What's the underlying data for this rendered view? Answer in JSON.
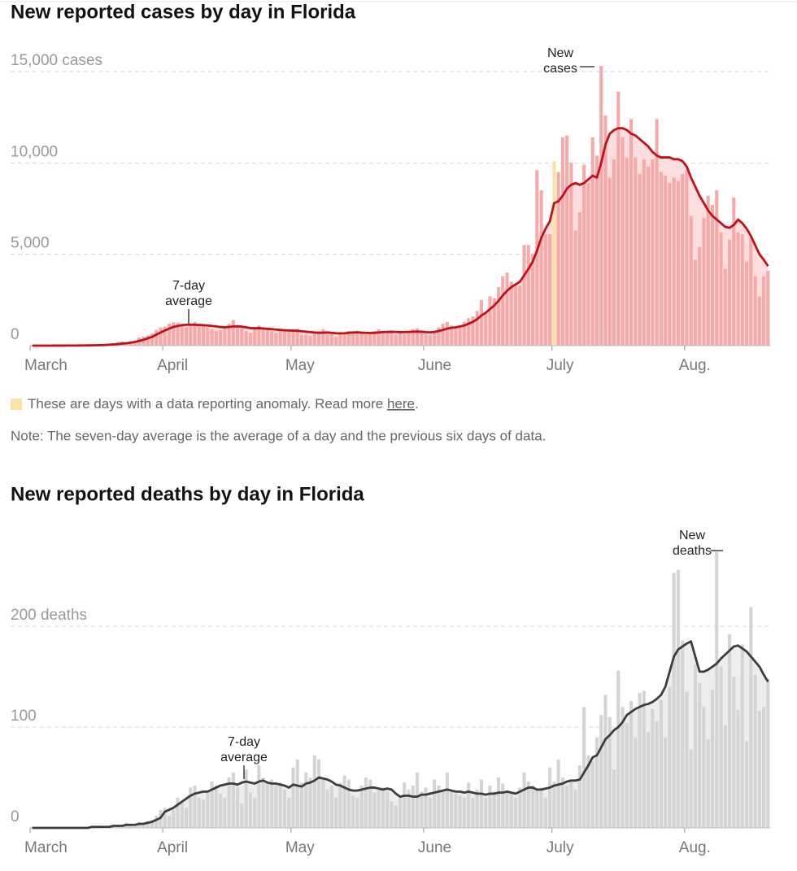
{
  "chart_data": [
    {
      "type": "bar",
      "title": "New reported cases by day in Florida",
      "categories": [
        "March",
        null,
        null,
        null,
        null,
        null,
        null,
        null,
        null,
        null,
        null,
        null,
        null,
        null,
        null,
        null,
        null,
        null,
        null,
        null,
        null,
        null,
        null,
        null,
        null,
        null,
        null,
        null,
        null,
        null,
        null,
        "April",
        null,
        null,
        null,
        null,
        null,
        null,
        null,
        null,
        null,
        null,
        null,
        null,
        null,
        null,
        null,
        null,
        null,
        null,
        null,
        null,
        null,
        null,
        null,
        null,
        null,
        null,
        null,
        null,
        null,
        "May",
        null,
        null,
        null,
        null,
        null,
        null,
        null,
        null,
        null,
        null,
        null,
        null,
        null,
        null,
        null,
        null,
        null,
        null,
        null,
        null,
        null,
        null,
        null,
        null,
        null,
        null,
        null,
        null,
        null,
        null,
        "June",
        null,
        null,
        null,
        null,
        null,
        null,
        null,
        null,
        null,
        null,
        null,
        null,
        null,
        null,
        null,
        null,
        null,
        null,
        null,
        null,
        null,
        null,
        null,
        null,
        null,
        null,
        null,
        null,
        null,
        "July",
        null,
        null,
        null,
        null,
        null,
        null,
        null,
        null,
        null,
        null,
        null,
        null,
        null,
        null,
        null,
        null,
        null,
        null,
        null,
        null,
        null,
        null,
        null,
        null,
        null,
        null,
        null,
        null,
        null,
        null,
        "Aug.",
        null,
        null,
        null,
        null,
        null,
        null,
        null,
        null,
        null,
        null,
        null,
        null,
        null,
        null,
        null,
        null,
        null,
        null,
        null
      ],
      "series": [
        {
          "type": "bar",
          "color": "#f5a9a9",
          "area_color": "#fcdede",
          "values": [
            0,
            1,
            0,
            1,
            3,
            5,
            4,
            2,
            7,
            3,
            12,
            13,
            21,
            30,
            27,
            40,
            56,
            70,
            121,
            140,
            193,
            220,
            152,
            243,
            265,
            445,
            505,
            566,
            657,
            860,
            1000,
            1040,
            1200,
            1280,
            1260,
            1200,
            1000,
            1150,
            1300,
            1100,
            1100,
            1000,
            900,
            800,
            850,
            1000,
            1200,
            1400,
            1050,
            1000,
            800,
            700,
            1000,
            1100,
            1000,
            900,
            800,
            700,
            800,
            900,
            850,
            800,
            900,
            600,
            600,
            550,
            700,
            800,
            900,
            600,
            700,
            500,
            600,
            700,
            800,
            750,
            800,
            700,
            600,
            650,
            800,
            900,
            700,
            800,
            750,
            600,
            700,
            650,
            750,
            900,
            950,
            700,
            650,
            600,
            800,
            1000,
            1200,
            1300,
            1100,
            1000,
            1100,
            1300,
            1500,
            1600,
            1900,
            2500,
            1800,
            2700,
            2600,
            3200,
            3800,
            4000,
            3500,
            3300,
            3300,
            5500,
            5500,
            5000,
            9600,
            8500,
            6100,
            6100,
            10100,
            9500,
            11400,
            11500,
            10000,
            6300,
            7300,
            9900,
            8900,
            11400,
            10400,
            15300,
            12600,
            9200,
            10200,
            13900,
            11400,
            10300,
            12400,
            10300,
            9400,
            10200,
            9800,
            10200,
            12400,
            9500,
            9300,
            8900,
            9200,
            9000,
            9400,
            9600,
            7100,
            4700,
            5400,
            7000,
            8200,
            7700,
            8500,
            6200,
            4200,
            5800,
            8100,
            6200,
            6100,
            4600,
            5900,
            3800,
            2700,
            3800,
            4100
          ]
        },
        {
          "type": "line",
          "color": "#c0111b",
          "values": [
            0,
            0,
            0,
            1,
            1,
            2,
            3,
            3,
            4,
            4,
            6,
            8,
            10,
            13,
            16,
            21,
            27,
            36,
            50,
            65,
            85,
            110,
            130,
            160,
            200,
            260,
            320,
            400,
            480,
            600,
            720,
            830,
            930,
            1020,
            1080,
            1120,
            1140,
            1150,
            1140,
            1130,
            1120,
            1100,
            1080,
            1050,
            1020,
            1000,
            1020,
            1050,
            1060,
            1040,
            1000,
            960,
            950,
            960,
            940,
            920,
            900,
            880,
            860,
            840,
            830,
            820,
            810,
            790,
            760,
            740,
            720,
            700,
            710,
            720,
            700,
            680,
            670,
            680,
            700,
            720,
            730,
            710,
            700,
            690,
            700,
            720,
            740,
            750,
            760,
            750,
            740,
            740,
            750,
            760,
            770,
            760,
            740,
            730,
            750,
            800,
            860,
            930,
            980,
            1000,
            1050,
            1100,
            1200,
            1300,
            1450,
            1650,
            1800,
            2000,
            2200,
            2450,
            2750,
            3000,
            3200,
            3350,
            3500,
            3850,
            4200,
            4600,
            5200,
            5900,
            6400,
            6800,
            7800,
            7900,
            8200,
            8600,
            8800,
            8900,
            8800,
            8900,
            9100,
            9300,
            9200,
            10000,
            11000,
            11600,
            11800,
            11900,
            11900,
            11800,
            11600,
            11500,
            11300,
            11100,
            10900,
            10600,
            10400,
            10300,
            10300,
            10300,
            10200,
            10200,
            10100,
            9800,
            9200,
            8700,
            8200,
            7800,
            7400,
            7100,
            6900,
            6700,
            6500,
            6450,
            6600,
            6900,
            6700,
            6400,
            6000,
            5500,
            5000,
            4700,
            4350
          ]
        }
      ],
      "annotations": [
        {
          "lines": [
            "New",
            "cases"
          ]
        },
        {
          "lines": [
            "7-day",
            "average"
          ]
        }
      ],
      "ylim": [
        0,
        15400
      ],
      "yticks": [
        0,
        {
          "value": 5000,
          "label": "5,000"
        },
        {
          "value": 10000,
          "label": "10,000"
        },
        {
          "value": 15000,
          "label": "15,000 cases"
        }
      ],
      "grid": true,
      "anomaly": {
        "indices": [
          122
        ],
        "color": "#fde3a3",
        "text": "These are days with a data reporting anomaly. Read more",
        "link": "here",
        "suffix": "."
      },
      "note": "Note: The seven-day average is the average of a day and the previous six days of data."
    },
    {
      "type": "bar",
      "title": "New reported deaths by day in Florida",
      "categories": [
        "March",
        null,
        null,
        null,
        null,
        null,
        null,
        null,
        null,
        null,
        null,
        null,
        null,
        null,
        null,
        null,
        null,
        null,
        null,
        null,
        null,
        null,
        null,
        null,
        null,
        null,
        null,
        null,
        null,
        null,
        null,
        "April",
        null,
        null,
        null,
        null,
        null,
        null,
        null,
        null,
        null,
        null,
        null,
        null,
        null,
        null,
        null,
        null,
        null,
        null,
        null,
        null,
        null,
        null,
        null,
        null,
        null,
        null,
        null,
        null,
        null,
        "May",
        null,
        null,
        null,
        null,
        null,
        null,
        null,
        null,
        null,
        null,
        null,
        null,
        null,
        null,
        null,
        null,
        null,
        null,
        null,
        null,
        null,
        null,
        null,
        null,
        null,
        null,
        null,
        null,
        null,
        null,
        "June",
        null,
        null,
        null,
        null,
        null,
        null,
        null,
        null,
        null,
        null,
        null,
        null,
        null,
        null,
        null,
        null,
        null,
        null,
        null,
        null,
        null,
        null,
        null,
        null,
        null,
        null,
        null,
        null,
        null,
        "July",
        null,
        null,
        null,
        null,
        null,
        null,
        null,
        null,
        null,
        null,
        null,
        null,
        null,
        null,
        null,
        null,
        null,
        null,
        null,
        null,
        null,
        null,
        null,
        null,
        null,
        null,
        null,
        null,
        null,
        null,
        "Aug.",
        null,
        null,
        null,
        null,
        null,
        null,
        null,
        null,
        null,
        null,
        null,
        null,
        null,
        null,
        null,
        null,
        null,
        null,
        null
      ],
      "series": [
        {
          "type": "bar",
          "color": "#d4d4d4",
          "area_color": "#ededed",
          "values": [
            0,
            0,
            0,
            0,
            0,
            0,
            1,
            0,
            0,
            0,
            0,
            0,
            1,
            0,
            2,
            0,
            1,
            1,
            1,
            3,
            2,
            2,
            5,
            3,
            2,
            6,
            4,
            7,
            8,
            12,
            18,
            20,
            12,
            18,
            30,
            25,
            20,
            40,
            42,
            30,
            28,
            36,
            46,
            42,
            34,
            30,
            50,
            55,
            40,
            24,
            58,
            35,
            30,
            62,
            50,
            46,
            48,
            42,
            45,
            38,
            30,
            60,
            68,
            45,
            55,
            50,
            72,
            68,
            50,
            38,
            42,
            30,
            45,
            52,
            48,
            32,
            30,
            42,
            50,
            48,
            35,
            38,
            40,
            36,
            26,
            22,
            30,
            45,
            38,
            42,
            55,
            36,
            40,
            30,
            48,
            42,
            38,
            55,
            38,
            34,
            32,
            30,
            45,
            30,
            38,
            48,
            30,
            42,
            36,
            50,
            44,
            35,
            34,
            30,
            40,
            55,
            46,
            42,
            38,
            40,
            30,
            60,
            46,
            68,
            50,
            42,
            48,
            38,
            62,
            120,
            72,
            66,
            90,
            112,
            132,
            110,
            58,
            156,
            120,
            104,
            126,
            90,
            134,
            136,
            95,
            118,
            106,
            127,
            90,
            140,
            253,
            256,
            186,
            135,
            78,
            162,
            144,
            120,
            88,
            137,
            274,
            160,
            102,
            192,
            150,
            117,
            182,
            86,
            219,
            152,
            116,
            120,
            148
          ]
        },
        {
          "type": "line",
          "color": "#3d3d3d",
          "values": [
            0,
            0,
            0,
            0,
            0,
            0,
            0,
            0,
            0,
            0,
            0,
            0,
            0,
            0,
            1,
            1,
            1,
            1,
            1,
            2,
            2,
            2,
            3,
            3,
            3,
            4,
            4,
            5,
            6,
            8,
            10,
            16,
            18,
            20,
            23,
            26,
            29,
            32,
            34,
            35,
            36,
            36,
            38,
            40,
            42,
            43,
            44,
            44,
            43,
            45,
            46,
            45,
            44,
            46,
            47,
            45,
            44,
            44,
            43,
            42,
            40,
            43,
            42,
            41,
            44,
            45,
            47,
            50,
            49,
            48,
            46,
            43,
            42,
            40,
            38,
            37,
            37,
            38,
            39,
            40,
            40,
            39,
            38,
            39,
            38,
            34,
            31,
            32,
            32,
            31,
            31,
            33,
            33,
            34,
            35,
            36,
            37,
            38,
            37,
            36,
            36,
            35,
            36,
            35,
            34,
            34,
            33,
            34,
            34,
            35,
            35,
            36,
            35,
            34,
            36,
            38,
            40,
            40,
            38,
            38,
            39,
            40,
            42,
            43,
            44,
            46,
            47,
            47,
            48,
            55,
            62,
            70,
            72,
            80,
            88,
            92,
            97,
            100,
            105,
            112,
            115,
            118,
            120,
            122,
            123,
            125,
            128,
            132,
            140,
            155,
            170,
            177,
            180,
            183,
            185,
            170,
            155,
            155,
            157,
            160,
            163,
            168,
            172,
            176,
            180,
            181,
            178,
            175,
            170,
            165,
            160,
            152,
            145
          ]
        }
      ],
      "annotations": [
        {
          "lines": [
            "New",
            "deaths"
          ]
        },
        {
          "lines": [
            "7-day",
            "average"
          ]
        }
      ],
      "ylim": [
        0,
        280
      ],
      "yticks": [
        0,
        100,
        {
          "value": 200,
          "label": "200 deaths"
        }
      ],
      "grid": true
    }
  ]
}
